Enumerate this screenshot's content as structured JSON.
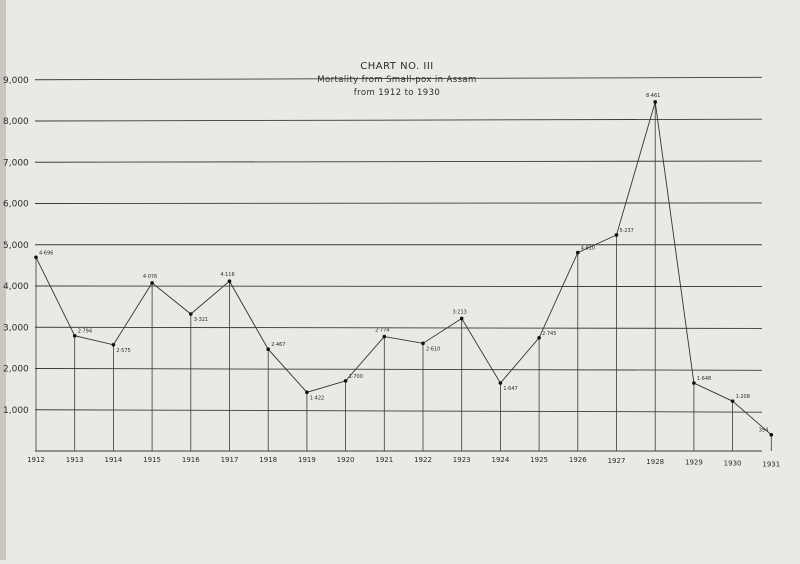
{
  "chart_data": {
    "type": "line",
    "title": "CHART NO. III",
    "subtitle_line1": "Mortality from Small-pox in Assam",
    "subtitle_line2": "from 1912 to 1930",
    "x": [
      "1912",
      "1913",
      "1914",
      "1915",
      "1916",
      "1917",
      "1918",
      "1919",
      "1920",
      "1921",
      "1922",
      "1923",
      "1924",
      "1925",
      "1926",
      "1927",
      "1928",
      "1929",
      "1930",
      "1931"
    ],
    "y_ticks": [
      "1,000",
      "2,000",
      "3,000",
      "4,000",
      "5,000",
      "6,000",
      "7,000",
      "8,000",
      "9,000"
    ],
    "ylim": [
      0,
      9000
    ],
    "grid": true,
    "series": [
      {
        "x": [
          "1912",
          "1913",
          "1914",
          "1915",
          "1916",
          "1917",
          "1918",
          "1919",
          "1920",
          "1921",
          "1922",
          "1923",
          "1924",
          "1925",
          "1926",
          "1927",
          "1928",
          "1929",
          "1930",
          "1931"
        ],
        "values": [
          4696,
          2794,
          2575,
          4076,
          3321,
          4116,
          2467,
          1422,
          1700,
          2774,
          2610,
          3213,
          1647,
          2745,
          4810,
          5237,
          8461,
          1648,
          1208,
          394
        ],
        "labels": [
          "4·696",
          "2·794",
          "2·575",
          "4·076",
          "3·321",
          "4·116",
          "2·467",
          "1·422",
          "1·700",
          "2·774",
          "2·610",
          "3·213",
          "1·647",
          "2·745",
          "4·810",
          "5·237",
          "8·461",
          "1·648",
          "1·208",
          "394"
        ]
      }
    ]
  }
}
